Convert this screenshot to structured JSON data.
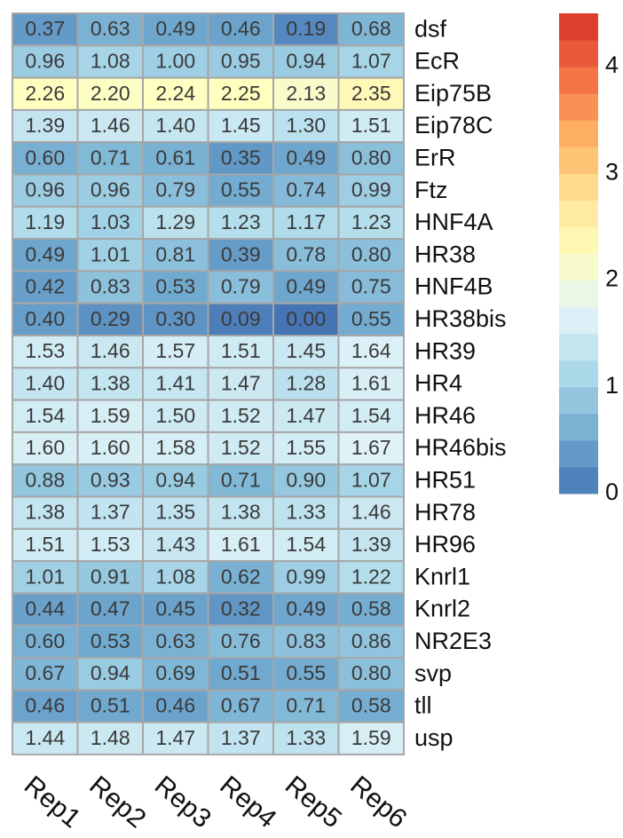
{
  "chart_data": {
    "type": "heatmap",
    "columns": [
      "Rep1",
      "Rep2",
      "Rep3",
      "Rep4",
      "Rep5",
      "Rep6"
    ],
    "rows": [
      "dsf",
      "EcR",
      "Eip75B",
      "Eip78C",
      "ErR",
      "Ftz",
      "HNF4A",
      "HR38",
      "HNF4B",
      "HR38bis",
      "HR39",
      "HR4",
      "HR46",
      "HR46bis",
      "HR51",
      "HR78",
      "HR96",
      "Knrl1",
      "Knrl2",
      "NR2E3",
      "svp",
      "tll",
      "usp"
    ],
    "values": [
      [
        "0.37",
        "0.63",
        "0.49",
        "0.46",
        "0.19",
        "0.68"
      ],
      [
        "0.96",
        "1.08",
        "1.00",
        "0.95",
        "0.94",
        "1.07"
      ],
      [
        "2.26",
        "2.20",
        "2.24",
        "2.25",
        "2.13",
        "2.35"
      ],
      [
        "1.39",
        "1.46",
        "1.40",
        "1.45",
        "1.30",
        "1.51"
      ],
      [
        "0.60",
        "0.71",
        "0.61",
        "0.35",
        "0.49",
        "0.80"
      ],
      [
        "0.96",
        "0.96",
        "0.79",
        "0.55",
        "0.74",
        "0.99"
      ],
      [
        "1.19",
        "1.03",
        "1.29",
        "1.23",
        "1.17",
        "1.23"
      ],
      [
        "0.49",
        "1.01",
        "0.81",
        "0.39",
        "0.78",
        "0.80"
      ],
      [
        "0.42",
        "0.83",
        "0.53",
        "0.79",
        "0.49",
        "0.75"
      ],
      [
        "0.40",
        "0.29",
        "0.30",
        "0.09",
        "0.00",
        "0.55"
      ],
      [
        "1.53",
        "1.46",
        "1.57",
        "1.51",
        "1.45",
        "1.64"
      ],
      [
        "1.40",
        "1.38",
        "1.41",
        "1.47",
        "1.28",
        "1.61"
      ],
      [
        "1.54",
        "1.59",
        "1.50",
        "1.52",
        "1.47",
        "1.54"
      ],
      [
        "1.60",
        "1.60",
        "1.58",
        "1.52",
        "1.55",
        "1.67"
      ],
      [
        "0.88",
        "0.93",
        "0.94",
        "0.71",
        "0.90",
        "1.07"
      ],
      [
        "1.38",
        "1.37",
        "1.35",
        "1.38",
        "1.33",
        "1.46"
      ],
      [
        "1.51",
        "1.53",
        "1.43",
        "1.61",
        "1.54",
        "1.39"
      ],
      [
        "1.01",
        "0.91",
        "1.08",
        "0.62",
        "0.99",
        "1.22"
      ],
      [
        "0.44",
        "0.47",
        "0.45",
        "0.32",
        "0.49",
        "0.58"
      ],
      [
        "0.60",
        "0.53",
        "0.63",
        "0.76",
        "0.83",
        "0.86"
      ],
      [
        "0.67",
        "0.94",
        "0.69",
        "0.51",
        "0.55",
        "0.80"
      ],
      [
        "0.46",
        "0.51",
        "0.46",
        "0.67",
        "0.71",
        "0.58"
      ],
      [
        "1.44",
        "1.48",
        "1.47",
        "1.37",
        "1.33",
        "1.59"
      ]
    ],
    "color_scale": {
      "range": [
        0,
        4.5
      ],
      "ticks": [
        "0",
        "1",
        "2",
        "3",
        "4"
      ],
      "stops": [
        "#4575b4",
        "#74add1",
        "#abd9e9",
        "#e0f3f8",
        "#ffffbf",
        "#fee090",
        "#fdae61",
        "#f46d43",
        "#d73027"
      ]
    },
    "title": "",
    "xlabel": "",
    "ylabel": "",
    "legend_position": "right",
    "grid": true,
    "grid_color": "#a6a6a6",
    "cell_text_color": "#3a3a3a"
  }
}
